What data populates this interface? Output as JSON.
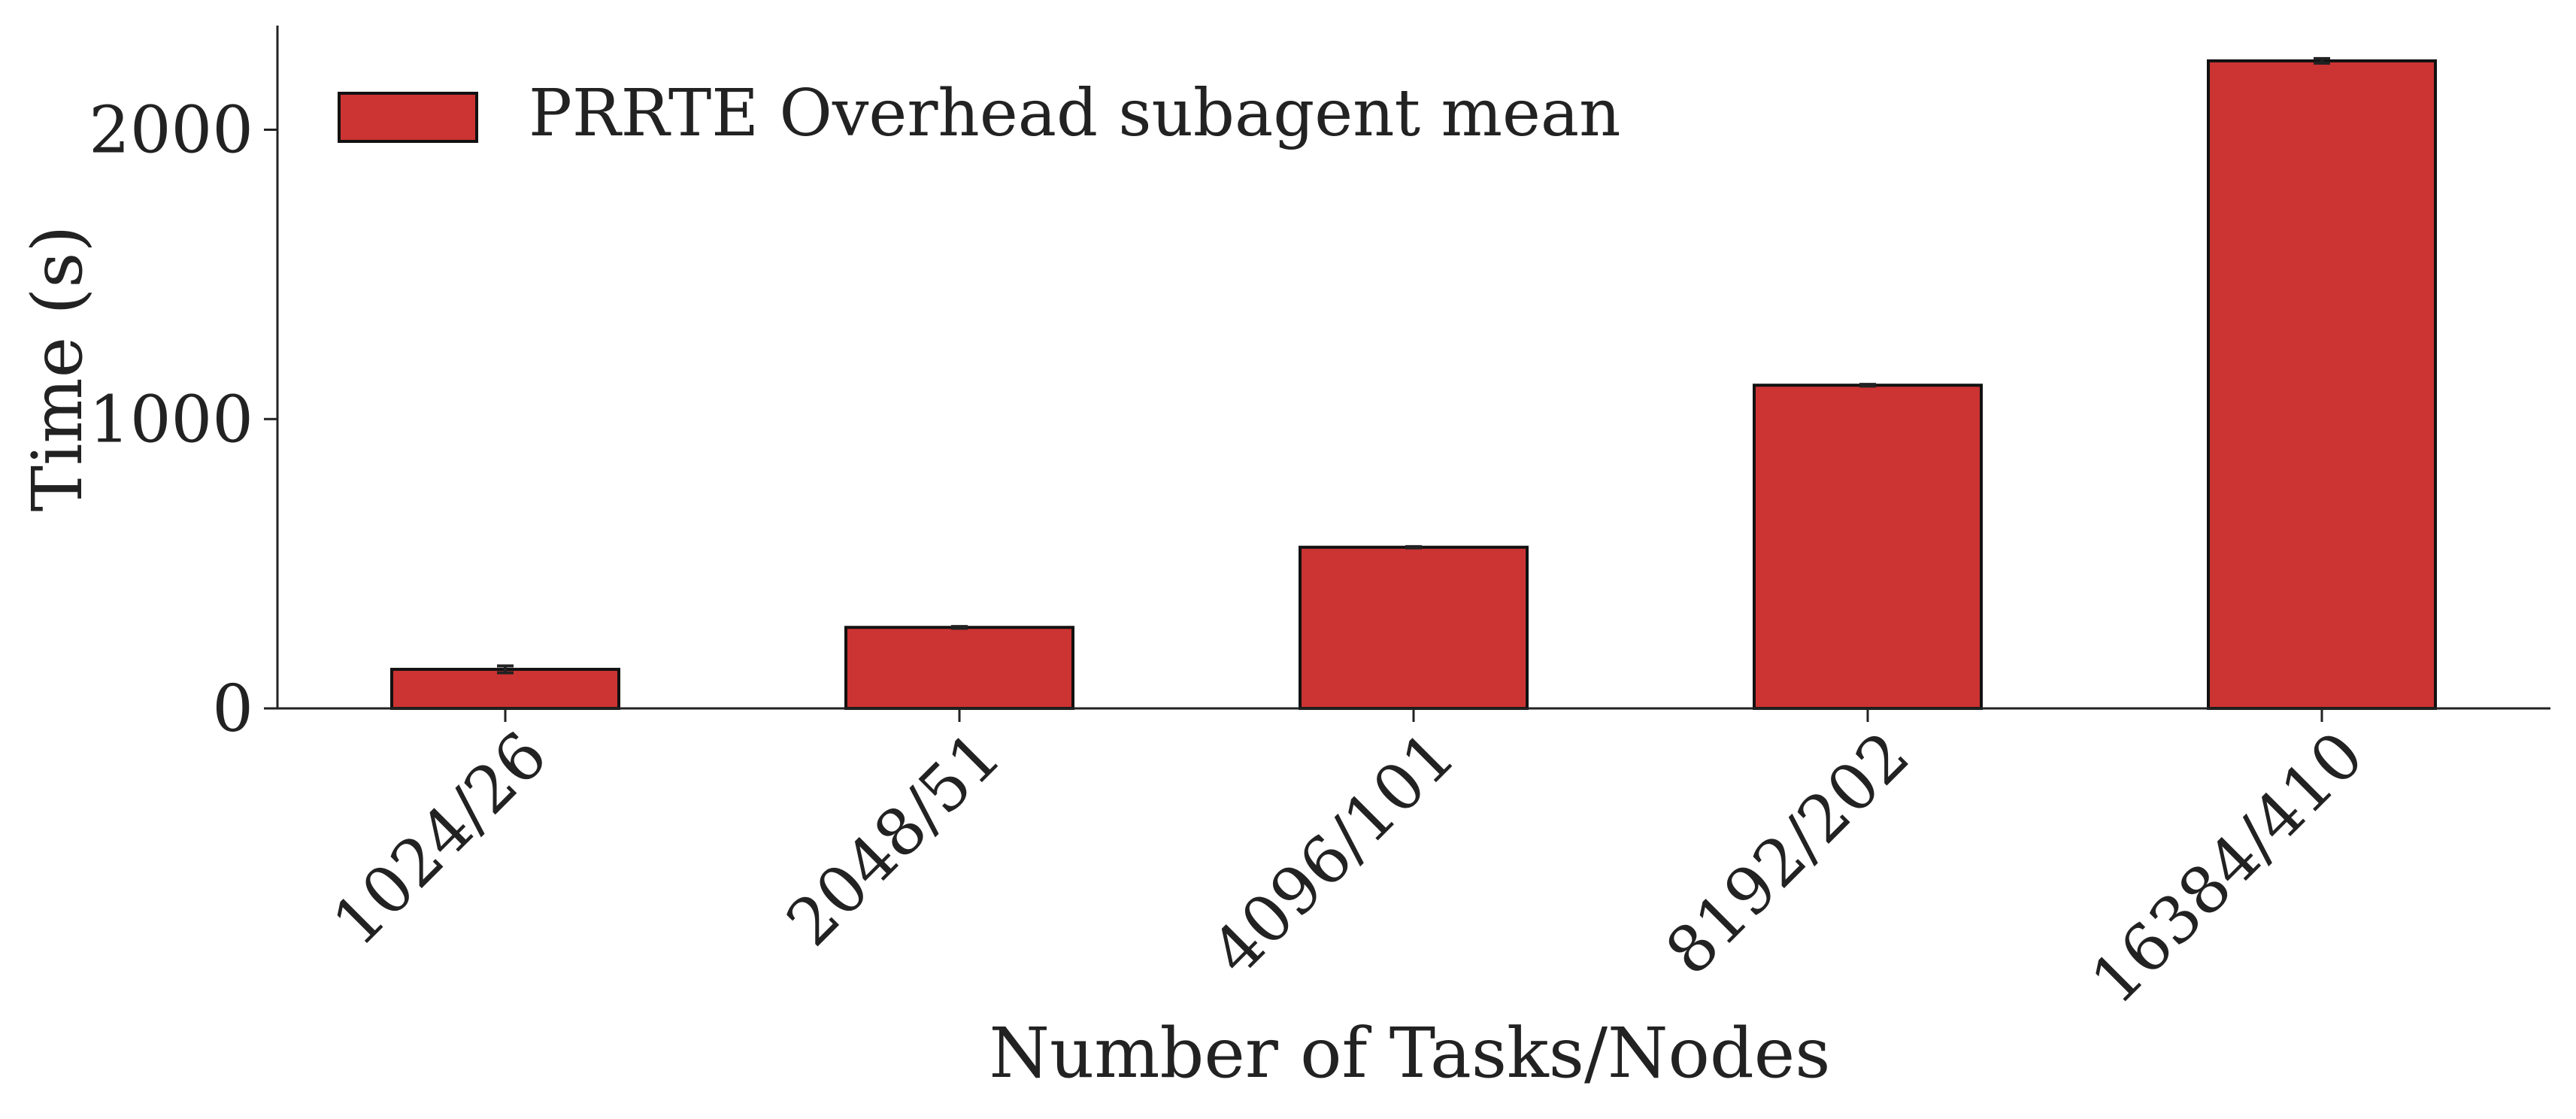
{
  "chart_data": {
    "type": "bar",
    "title": "",
    "xlabel": "Number of Tasks/Nodes",
    "ylabel": "Time (s)",
    "categories": [
      "1024/26",
      "2048/51",
      "4096/101",
      "8192/202",
      "16384/410"
    ],
    "series": [
      {
        "name": "PRRTE Overhead subagent mean",
        "values": [
          135,
          280,
          557,
          1117,
          2238
        ],
        "errors": [
          12,
          3,
          2,
          3,
          8
        ],
        "color": "#cc3333"
      }
    ],
    "yticks": [
      0,
      1000,
      2000
    ],
    "ylim": [
      0,
      2360
    ],
    "legend_position": "top-left",
    "grid": false
  }
}
